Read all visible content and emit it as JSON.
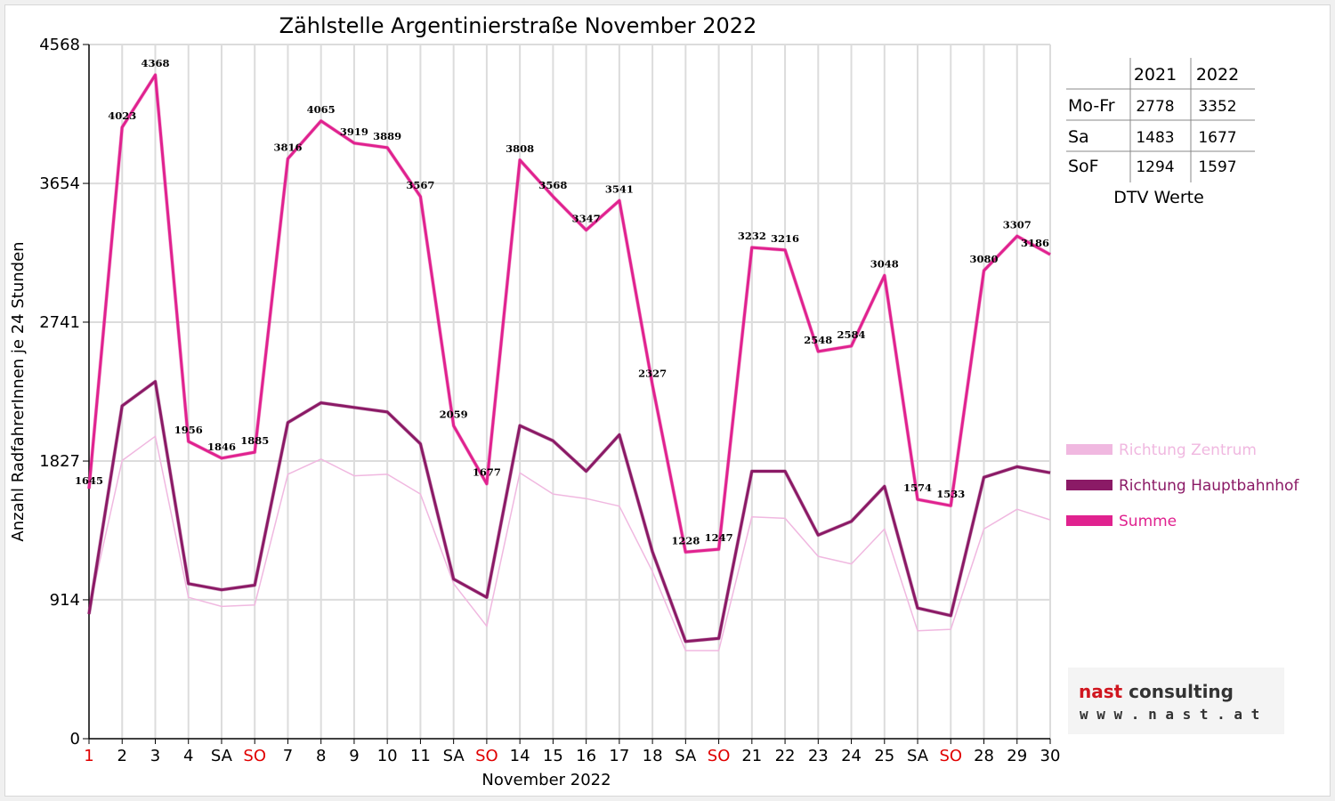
{
  "chart_data": {
    "type": "line",
    "title": "Zählstelle Argentinierstraße November 2022",
    "xlabel": "November 2022",
    "ylabel": "Anzahl RadfahrerInnen je 24 Stunden",
    "ylim": [
      0,
      4568
    ],
    "yticks": [
      "0",
      "914",
      "1827",
      "2741",
      "3654",
      "4568"
    ],
    "categories": [
      "1",
      "2",
      "3",
      "4",
      "SA",
      "SO",
      "7",
      "8",
      "9",
      "10",
      "11",
      "SA",
      "SO",
      "14",
      "15",
      "16",
      "17",
      "18",
      "SA",
      "SO",
      "21",
      "22",
      "23",
      "24",
      "25",
      "SA",
      "SO",
      "28",
      "29",
      "30"
    ],
    "red_categories": [
      0,
      5,
      12,
      19,
      26
    ],
    "grid": true,
    "series": [
      {
        "name": "Richtung Zentrum",
        "color": "#f0b8e0",
        "width": 1.5,
        "values": [
          850,
          1830,
          1990,
          930,
          870,
          880,
          1740,
          1840,
          1730,
          1740,
          1610,
          1020,
          740,
          1750,
          1610,
          1580,
          1530,
          1100,
          580,
          580,
          1460,
          1450,
          1200,
          1150,
          1380,
          710,
          720,
          1380,
          1510,
          1440
        ]
      },
      {
        "name": "Richtung Hauptbahnhof",
        "color": "#8b1a66",
        "width": 3,
        "values": [
          820,
          2190,
          2350,
          1020,
          980,
          1010,
          2080,
          2210,
          2180,
          2150,
          1940,
          1050,
          930,
          2060,
          1960,
          1760,
          2000,
          1230,
          640,
          660,
          1760,
          1760,
          1340,
          1430,
          1660,
          860,
          810,
          1720,
          1790,
          1750
        ]
      },
      {
        "name": "Summe",
        "color": "#e0228f",
        "width": 3,
        "values": [
          1645,
          4023,
          4368,
          1956,
          1846,
          1885,
          3816,
          4065,
          3919,
          3889,
          3567,
          2059,
          1677,
          3808,
          3568,
          3347,
          3541,
          2327,
          1228,
          1247,
          3232,
          3216,
          2548,
          2584,
          3048,
          1574,
          1533,
          3080,
          3307,
          3186
        ],
        "labels": [
          "1645",
          "4023",
          "4368",
          "1956",
          "1846",
          "1885",
          "3816",
          "4065",
          "3919",
          "3889",
          "3567",
          "2059",
          "1677",
          "3808",
          "3568",
          "3347",
          "3541",
          "2327",
          "1228",
          "1247",
          "3232",
          "3216",
          "2548",
          "2584",
          "3048",
          "1574",
          "1533",
          "3080",
          "3307",
          "3186"
        ]
      }
    ],
    "legend": {
      "position": "right",
      "items": [
        "Richtung Zentrum",
        "Richtung Hauptbahnhof",
        "Summe"
      ]
    }
  },
  "dtv_table": {
    "headers": [
      "",
      "2021",
      "2022"
    ],
    "rows": [
      [
        "Mo-Fr",
        "2778",
        "3352"
      ],
      [
        "Sa",
        "1483",
        "1677"
      ],
      [
        "SoF",
        "1294",
        "1597"
      ]
    ],
    "caption": "DTV Werte"
  },
  "logo": {
    "brand_word1": "nast",
    "brand_word2": "consulting",
    "url": "w w w . n a s t . a t",
    "color_red": "#d0161f",
    "color_dark": "#333333"
  }
}
